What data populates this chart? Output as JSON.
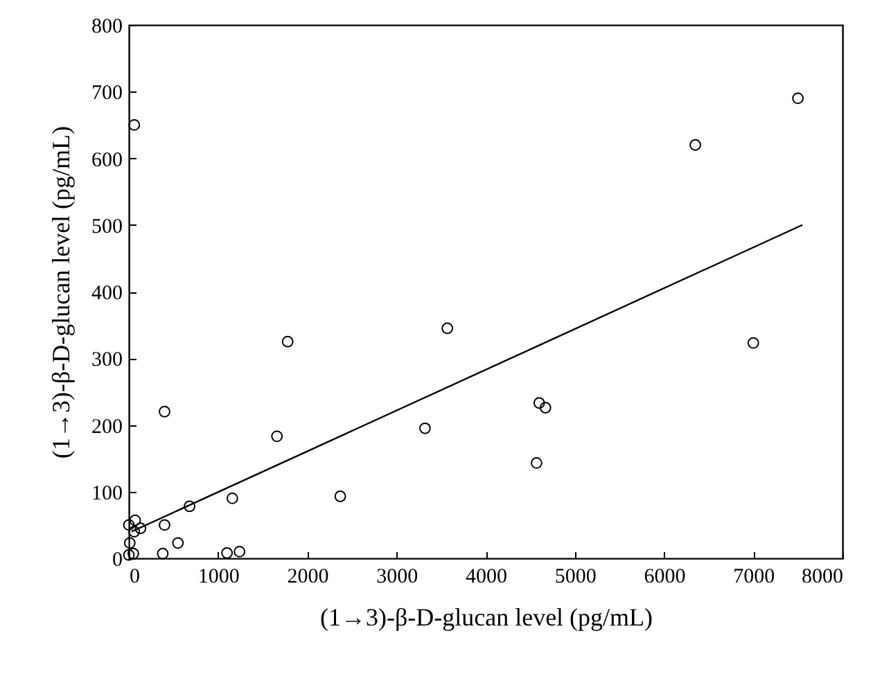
{
  "chart_data": {
    "type": "scatter",
    "xlabel": "(1→3)-β-D-glucan level (pg/mL)",
    "ylabel": "(1→3)-β-D-glucan level (pg/mL)",
    "xlim": [
      0,
      8000
    ],
    "xticks": [
      0,
      1000,
      2000,
      3000,
      4000,
      5000,
      6000,
      7000,
      8000
    ],
    "ylim": [
      0,
      800
    ],
    "yticks": [
      0,
      100,
      200,
      300,
      400,
      500,
      600,
      700,
      800
    ],
    "grid": false,
    "series": [
      {
        "marker": "circle",
        "color": "#000000",
        "x": [
          60,
          1780,
          3570,
          400,
          1660,
          3320,
          2370,
          1160,
          680,
          400,
          550,
          380,
          1100,
          1240,
          0,
          70,
          130,
          60,
          10,
          0,
          50,
          7500,
          6350,
          7000,
          4600,
          4670,
          4570
        ],
        "values": [
          650,
          325,
          345,
          220,
          183,
          195,
          93,
          90,
          78,
          50,
          23,
          7,
          8,
          10,
          50,
          57,
          45,
          40,
          23,
          5,
          7,
          690,
          620,
          323,
          233,
          226,
          143
        ]
      },
      {
        "type": "line",
        "color": "#000000",
        "x": [
          30,
          7550
        ],
        "values": [
          40,
          500
        ]
      }
    ]
  }
}
